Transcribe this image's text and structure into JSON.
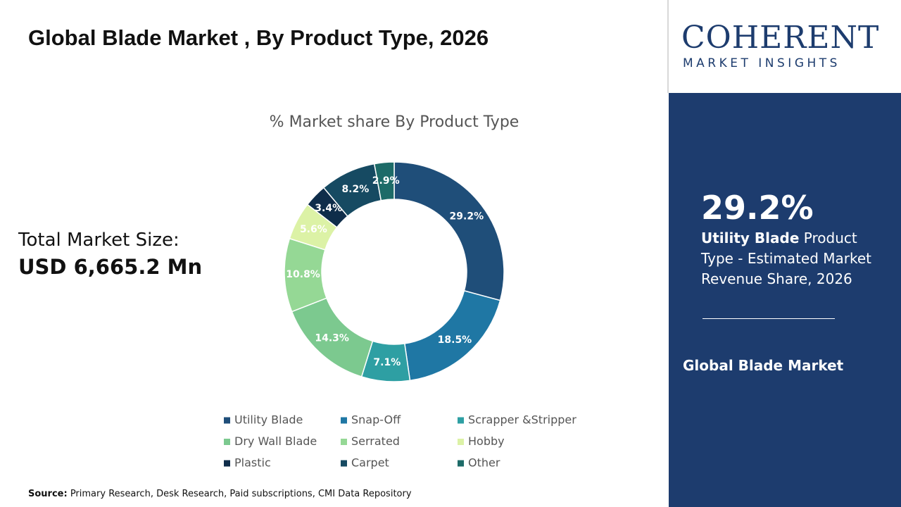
{
  "header": {
    "title": "Global Blade Market , By Product Type, 2026"
  },
  "logo": {
    "name": "COHERENT",
    "tagline": "MARKET INSIGHTS"
  },
  "market_size": {
    "label": "Total Market Size:",
    "value": "USD 6,665.2 Mn"
  },
  "highlight": {
    "value": "29.2%",
    "product": "Utility Blade",
    "text": " Product Type - Estimated Market Revenue Share, 2026",
    "market": "Global Blade Market"
  },
  "source": {
    "label": "Source:",
    "text": " Primary Research, Desk Research, Paid subscriptions, CMI Data Repository"
  },
  "chart_data": {
    "type": "donut",
    "title": "% Market share By Product Type",
    "categories": [
      "Utility Blade",
      "Snap-Off",
      "Scrapper &Stripper",
      "Dry Wall Blade",
      "Serrated",
      "Hobby",
      "Plastic",
      "Carpet",
      "Other"
    ],
    "values": [
      29.2,
      18.5,
      7.1,
      14.3,
      10.8,
      5.6,
      3.4,
      8.2,
      2.9
    ],
    "value_labels": [
      "29.2%",
      "18.5%",
      "7.1%",
      "14.3%",
      "10.8%",
      "5.6%",
      "3.4%",
      "8.2%",
      "2.9%"
    ],
    "colors": [
      "#1f4e79",
      "#1f77a4",
      "#2e9fa3",
      "#7cc98f",
      "#95d895",
      "#dcf2a6",
      "#0f2d4a",
      "#164a62",
      "#1d6b68"
    ],
    "legend": "bottom"
  }
}
